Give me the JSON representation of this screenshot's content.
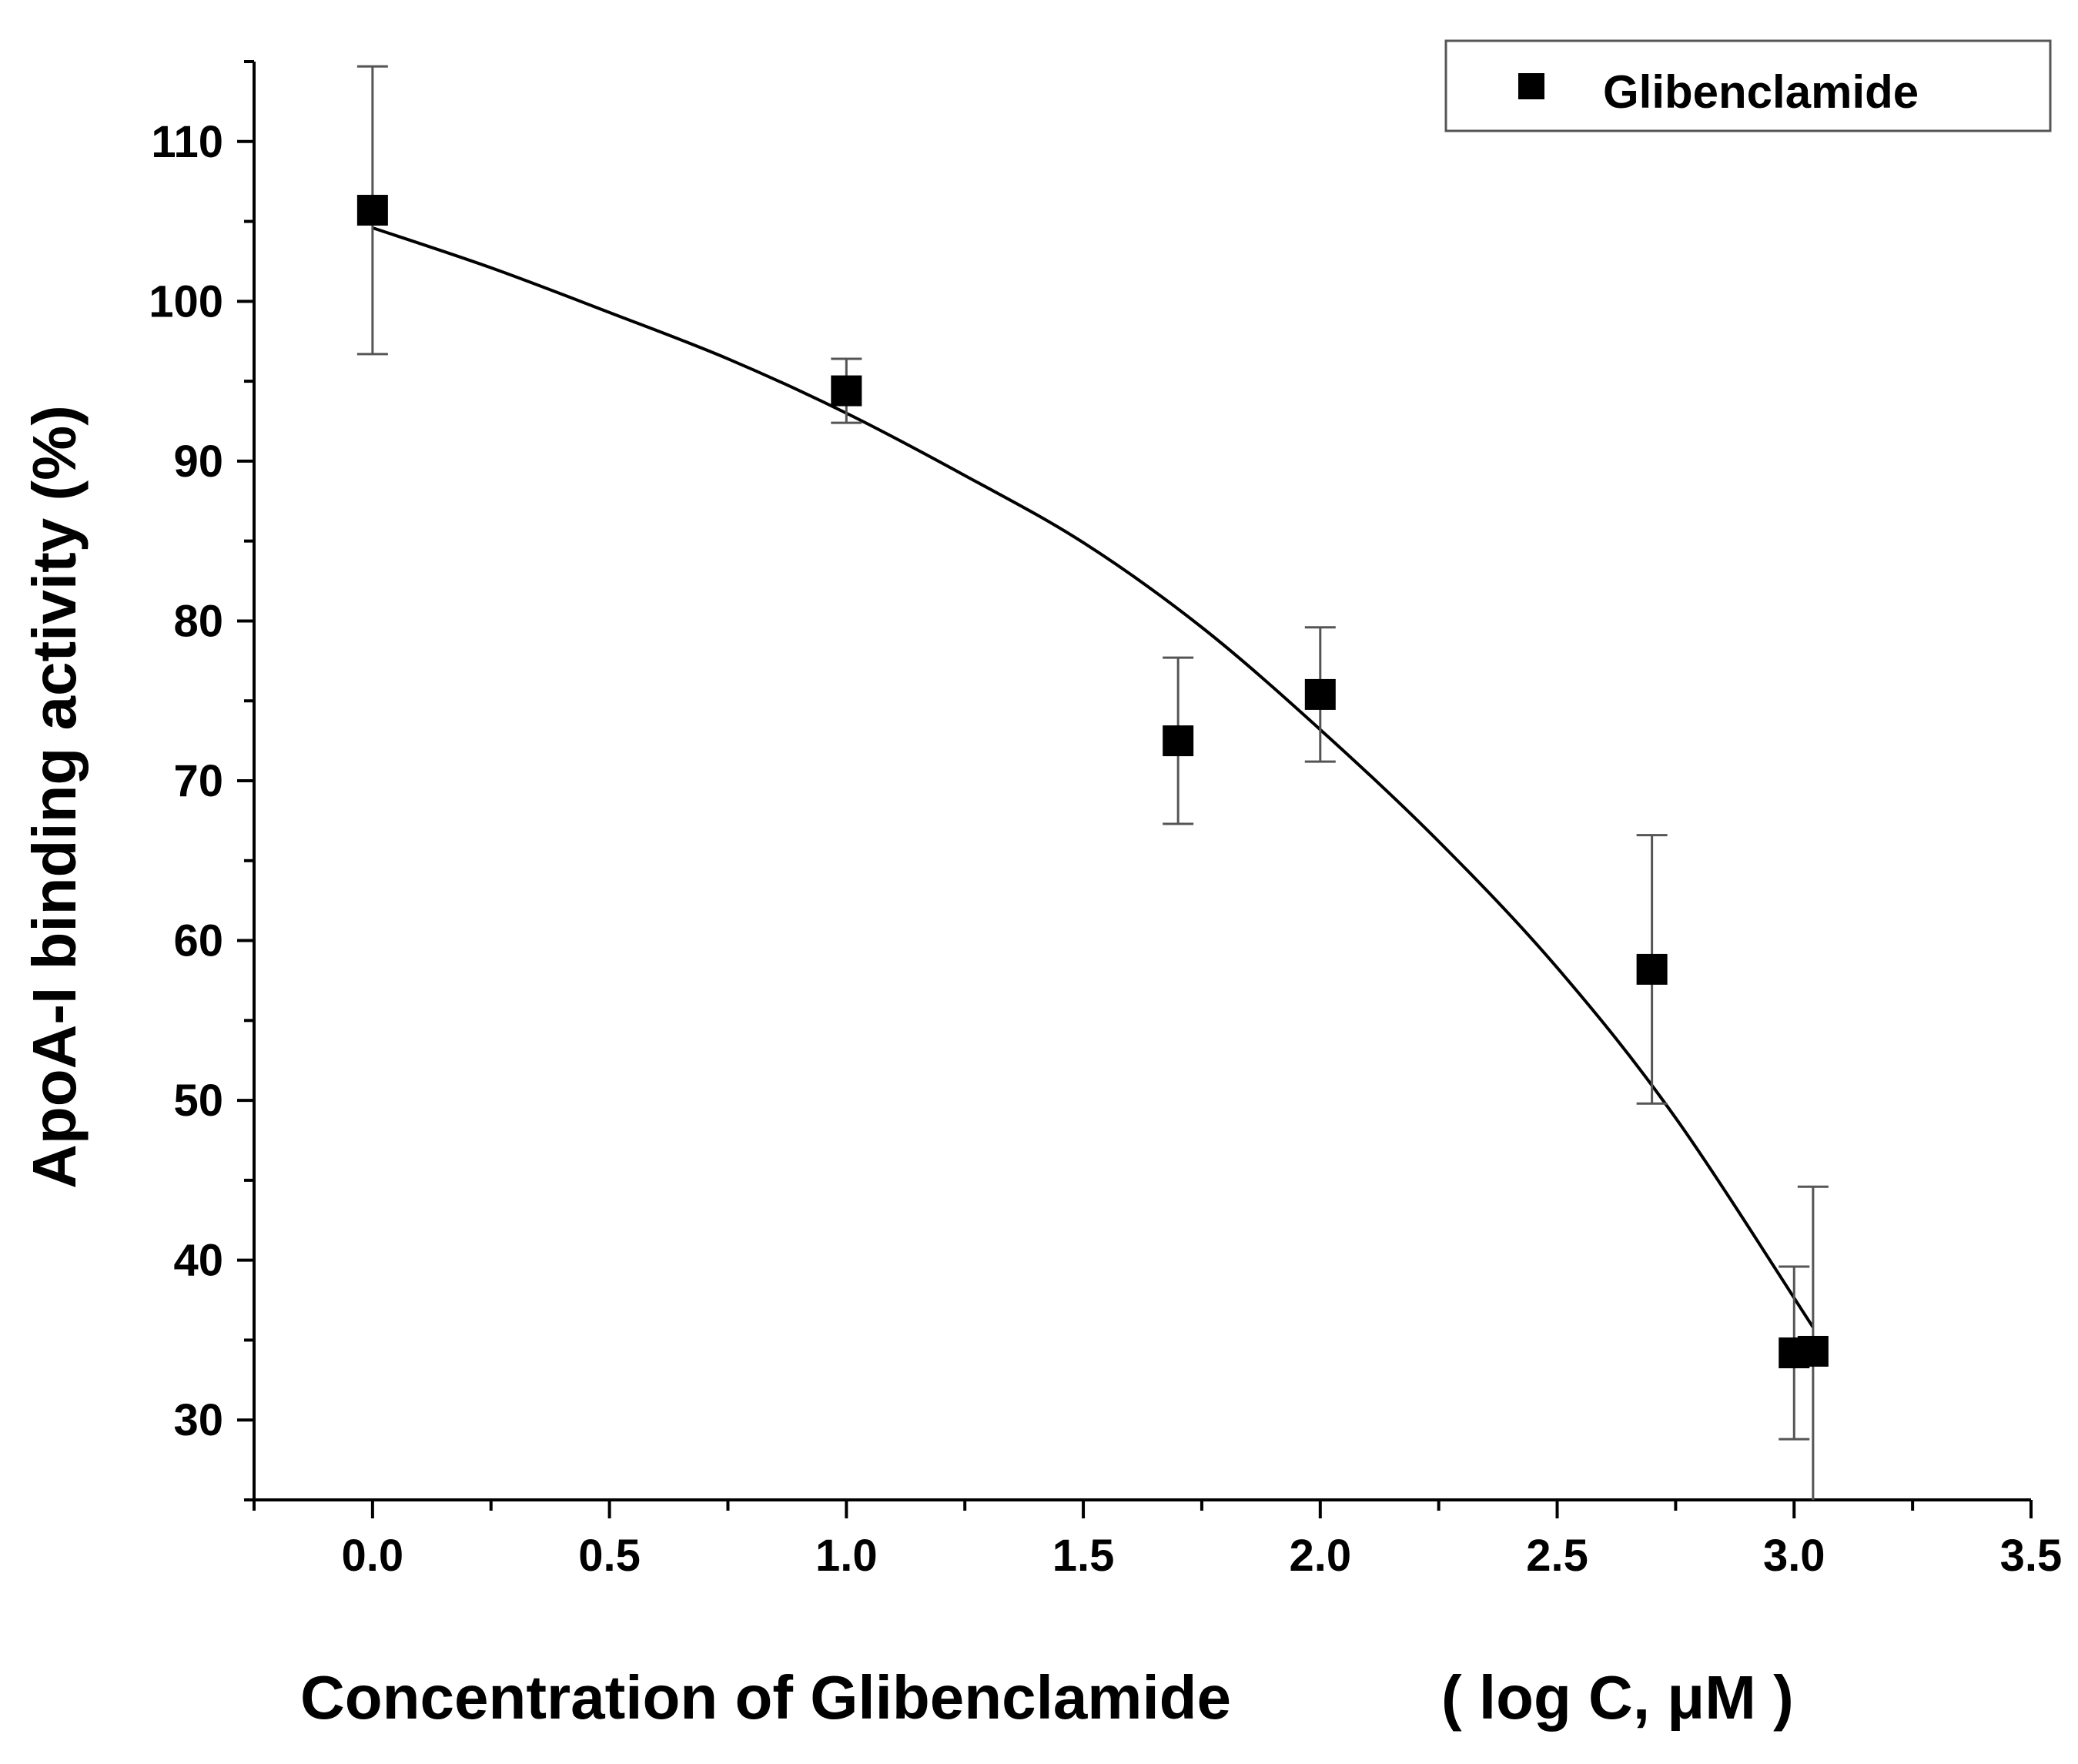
{
  "chart_data": {
    "type": "scatter",
    "title": "",
    "xlabel": "Concentration of Glibenclamide",
    "xlabel_unit": "( log C,  μM )",
    "ylabel": "ApoA-I binding activity (%)",
    "xlim": [
      -0.25,
      3.5
    ],
    "ylim": [
      25,
      115
    ],
    "x_ticks": [
      0.0,
      0.5,
      1.0,
      1.5,
      2.0,
      2.5,
      3.0,
      3.5
    ],
    "x_tick_labels": [
      "0.0",
      "0.5",
      "1.0",
      "1.5",
      "2.0",
      "2.5",
      "3.0",
      "3.5"
    ],
    "y_ticks": [
      30,
      40,
      50,
      60,
      70,
      80,
      90,
      100,
      110
    ],
    "y_tick_labels": [
      "30",
      "40",
      "50",
      "60",
      "70",
      "80",
      "90",
      "100",
      "110"
    ],
    "legend": {
      "position": "top-right",
      "entries": [
        "Glibenclamide"
      ]
    },
    "series": [
      {
        "name": "Glibenclamide",
        "marker": "square",
        "color": "#000000",
        "x": [
          0.0,
          1.0,
          1.7,
          2.0,
          2.7,
          3.0,
          3.04
        ],
        "y": [
          105.7,
          94.4,
          72.5,
          75.4,
          58.2,
          34.2,
          34.3
        ],
        "error": [
          9.0,
          2.0,
          5.2,
          4.2,
          8.4,
          5.4,
          10.3
        ]
      }
    ],
    "fit_curve": {
      "name": "fit",
      "color": "#000000",
      "x": [
        0.0,
        0.25,
        0.5,
        0.75,
        1.0,
        1.25,
        1.5,
        1.75,
        2.0,
        2.25,
        2.5,
        2.75,
        3.04
      ],
      "y": [
        104.6,
        102.1,
        99.3,
        96.4,
        93.0,
        89.1,
        84.9,
        79.6,
        73.2,
        66.2,
        58.3,
        48.9,
        35.8
      ]
    }
  }
}
